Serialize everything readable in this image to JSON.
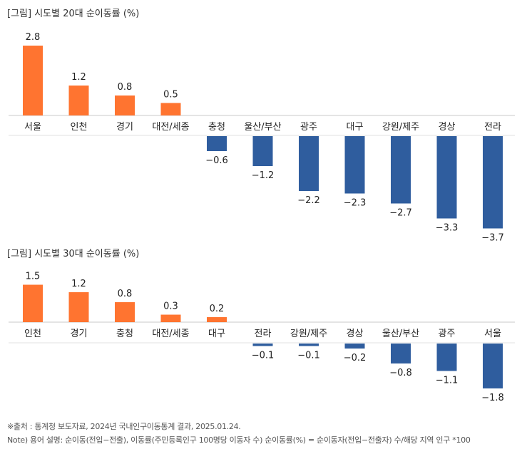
{
  "colors": {
    "positive": "#FF7430",
    "negative": "#2F5D9E",
    "axis": "#c8c8c8"
  },
  "chart_data": [
    {
      "type": "bar",
      "title": "[그림] 시도별 20대 순이동률 (%)",
      "categories": [
        "서울",
        "인천",
        "경기",
        "대전/세종",
        "충청",
        "울산/부산",
        "광주",
        "대구",
        "강원/제주",
        "경상",
        "전라"
      ],
      "values": [
        2.8,
        1.2,
        0.8,
        0.5,
        -0.6,
        -1.2,
        -2.2,
        -2.3,
        -2.7,
        -3.3,
        -3.7
      ],
      "value_labels": [
        "2.8",
        "1.2",
        "0.8",
        "0.5",
        "-0.6",
        "-1.2",
        "-2.2",
        "-2.3",
        "-2.7",
        "-3.3",
        "-3.7"
      ]
    },
    {
      "type": "bar",
      "title": "[그림] 시도별 30대 순이동률 (%)",
      "categories": [
        "인천",
        "경기",
        "충청",
        "대전/세종",
        "대구",
        "전라",
        "강원/제주",
        "경상",
        "울산/부산",
        "광주",
        "서울"
      ],
      "values": [
        1.5,
        1.2,
        0.8,
        0.3,
        0.2,
        -0.1,
        -0.1,
        -0.2,
        -0.8,
        -1.1,
        -1.8
      ],
      "value_labels": [
        "1.5",
        "1.2",
        "0.8",
        "0.3",
        "0.2",
        "-0.1",
        "-0.1",
        "-0.2",
        "-0.8",
        "-1.1",
        "-1.8"
      ]
    }
  ],
  "footnotes": {
    "source": "※출처 : 통계청 보도자료, 2024년 국내인구이동통계 결과, 2025.01.24.",
    "note": "Note) 용어 설명: 순이동(전입−전출), 이동률(주민등록인구 100명당 이동자 수) 순이동률(%) = 순이동자(전입−전출자) 수/해당 지역 인구 *100"
  }
}
